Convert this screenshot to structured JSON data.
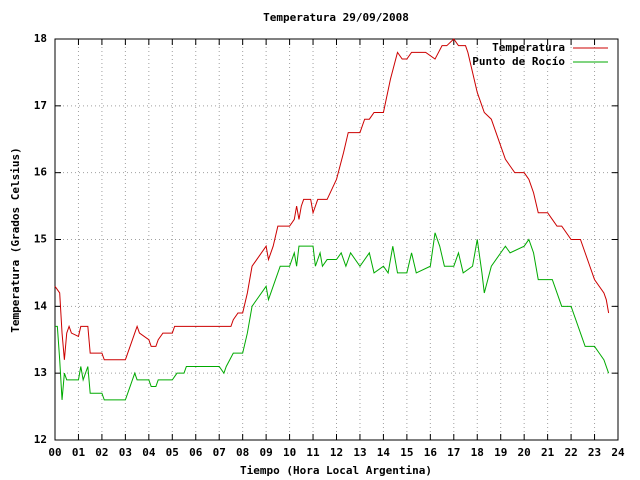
{
  "chart_data": {
    "type": "line",
    "title": "Temperatura 29/09/2008",
    "x_label": "Tiempo (Hora Local Argentina)",
    "y_label": "Temperatura (Grados Celsius)",
    "xlim": [
      0,
      24
    ],
    "ylim": [
      12,
      18
    ],
    "xticks": [
      {
        "value": 0,
        "label": "00"
      },
      {
        "value": 1,
        "label": "01"
      },
      {
        "value": 2,
        "label": "02"
      },
      {
        "value": 3,
        "label": "03"
      },
      {
        "value": 4,
        "label": "04"
      },
      {
        "value": 5,
        "label": "05"
      },
      {
        "value": 6,
        "label": "06"
      },
      {
        "value": 7,
        "label": "07"
      },
      {
        "value": 8,
        "label": "08"
      },
      {
        "value": 9,
        "label": "09"
      },
      10,
      11,
      12,
      13,
      14,
      15,
      16,
      17,
      18,
      19,
      20,
      21,
      22,
      23,
      24
    ],
    "yticks": [
      12,
      13,
      14,
      15,
      16,
      17,
      18
    ],
    "grid": true,
    "legend": "upper right",
    "series": [
      {
        "name": "Temperatura",
        "color": "#cc0000",
        "x": [
          0.0,
          0.2,
          0.3,
          0.4,
          0.5,
          0.6,
          0.7,
          1.0,
          1.1,
          1.4,
          1.5,
          2.0,
          2.1,
          3.0,
          3.2,
          3.4,
          3.5,
          3.6,
          4.0,
          4.1,
          4.3,
          4.4,
          4.6,
          5.0,
          5.1,
          6.0,
          7.0,
          7.5,
          7.6,
          7.8,
          8.0,
          8.2,
          8.4,
          8.6,
          9.0,
          9.1,
          9.3,
          9.5,
          10.0,
          10.2,
          10.3,
          10.4,
          10.5,
          10.6,
          10.9,
          11.0,
          11.2,
          11.6,
          12.0,
          12.3,
          12.5,
          13.0,
          13.2,
          13.4,
          13.6,
          14.0,
          14.3,
          14.6,
          14.8,
          15.0,
          15.2,
          15.8,
          16.2,
          16.5,
          16.7,
          17.0,
          17.2,
          17.5,
          17.6,
          17.8,
          18.0,
          18.2,
          18.3,
          18.6,
          19.0,
          19.2,
          19.4,
          19.6,
          20.0,
          20.2,
          20.4,
          20.6,
          21.0,
          21.2,
          21.4,
          21.6,
          22.0,
          22.4,
          22.6,
          22.8,
          23.0,
          23.4,
          23.5,
          23.6
        ],
        "values": [
          14.3,
          14.2,
          13.6,
          13.2,
          13.6,
          13.7,
          13.6,
          13.55,
          13.7,
          13.7,
          13.3,
          13.3,
          13.2,
          13.2,
          13.4,
          13.6,
          13.7,
          13.6,
          13.5,
          13.4,
          13.4,
          13.5,
          13.6,
          13.6,
          13.7,
          13.7,
          13.7,
          13.7,
          13.8,
          13.9,
          13.9,
          14.2,
          14.6,
          14.7,
          14.9,
          14.7,
          14.9,
          15.2,
          15.2,
          15.3,
          15.5,
          15.3,
          15.5,
          15.6,
          15.6,
          15.4,
          15.6,
          15.6,
          15.9,
          16.3,
          16.6,
          16.6,
          16.8,
          16.8,
          16.9,
          16.9,
          17.4,
          17.8,
          17.7,
          17.7,
          17.8,
          17.8,
          17.7,
          17.9,
          17.9,
          18.0,
          17.9,
          17.9,
          17.8,
          17.5,
          17.2,
          17.0,
          16.9,
          16.8,
          16.4,
          16.2,
          16.1,
          16.0,
          16.0,
          15.9,
          15.7,
          15.4,
          15.4,
          15.3,
          15.2,
          15.2,
          15.0,
          15.0,
          14.8,
          14.6,
          14.4,
          14.2,
          14.1,
          13.9
        ]
      },
      {
        "name": "Punto de Rocío",
        "color": "#00aa00",
        "x": [
          0.0,
          0.1,
          0.2,
          0.3,
          0.4,
          0.5,
          1.0,
          1.1,
          1.2,
          1.4,
          1.5,
          2.0,
          2.1,
          3.0,
          3.2,
          3.4,
          3.5,
          4.0,
          4.1,
          4.3,
          4.4,
          5.0,
          5.2,
          5.5,
          5.6,
          6.0,
          7.0,
          7.2,
          7.3,
          7.6,
          8.0,
          8.2,
          8.4,
          8.6,
          9.0,
          9.1,
          9.4,
          9.6,
          10.0,
          10.2,
          10.3,
          10.4,
          11.0,
          11.1,
          11.3,
          11.4,
          11.6,
          12.0,
          12.2,
          12.4,
          12.6,
          13.0,
          13.4,
          13.6,
          14.0,
          14.2,
          14.4,
          14.6,
          15.0,
          15.2,
          15.4,
          16.0,
          16.2,
          16.4,
          16.6,
          17.0,
          17.2,
          17.4,
          17.8,
          18.0,
          18.2,
          18.3,
          18.6,
          19.0,
          19.2,
          19.4,
          20.0,
          20.2,
          20.4,
          20.6,
          21.0,
          21.2,
          21.4,
          21.6,
          22.0,
          22.4,
          22.6,
          23.0,
          23.2,
          23.4,
          23.6
        ],
        "values": [
          13.7,
          13.7,
          13.2,
          12.6,
          13.0,
          12.9,
          12.9,
          13.1,
          12.9,
          13.1,
          12.7,
          12.7,
          12.6,
          12.6,
          12.8,
          13.0,
          12.9,
          12.9,
          12.8,
          12.8,
          12.9,
          12.9,
          13.0,
          13.0,
          13.1,
          13.1,
          13.1,
          13.0,
          13.1,
          13.3,
          13.3,
          13.6,
          14.0,
          14.1,
          14.3,
          14.1,
          14.4,
          14.6,
          14.6,
          14.8,
          14.6,
          14.9,
          14.9,
          14.6,
          14.8,
          14.6,
          14.7,
          14.7,
          14.8,
          14.6,
          14.8,
          14.6,
          14.8,
          14.5,
          14.6,
          14.5,
          14.9,
          14.5,
          14.5,
          14.8,
          14.5,
          14.6,
          15.1,
          14.9,
          14.6,
          14.6,
          14.8,
          14.5,
          14.6,
          15.0,
          14.5,
          14.2,
          14.6,
          14.8,
          14.9,
          14.8,
          14.9,
          15.0,
          14.8,
          14.4,
          14.4,
          14.4,
          14.2,
          14.0,
          14.0,
          13.6,
          13.4,
          13.4,
          13.3,
          13.2,
          13.0
        ]
      }
    ]
  }
}
